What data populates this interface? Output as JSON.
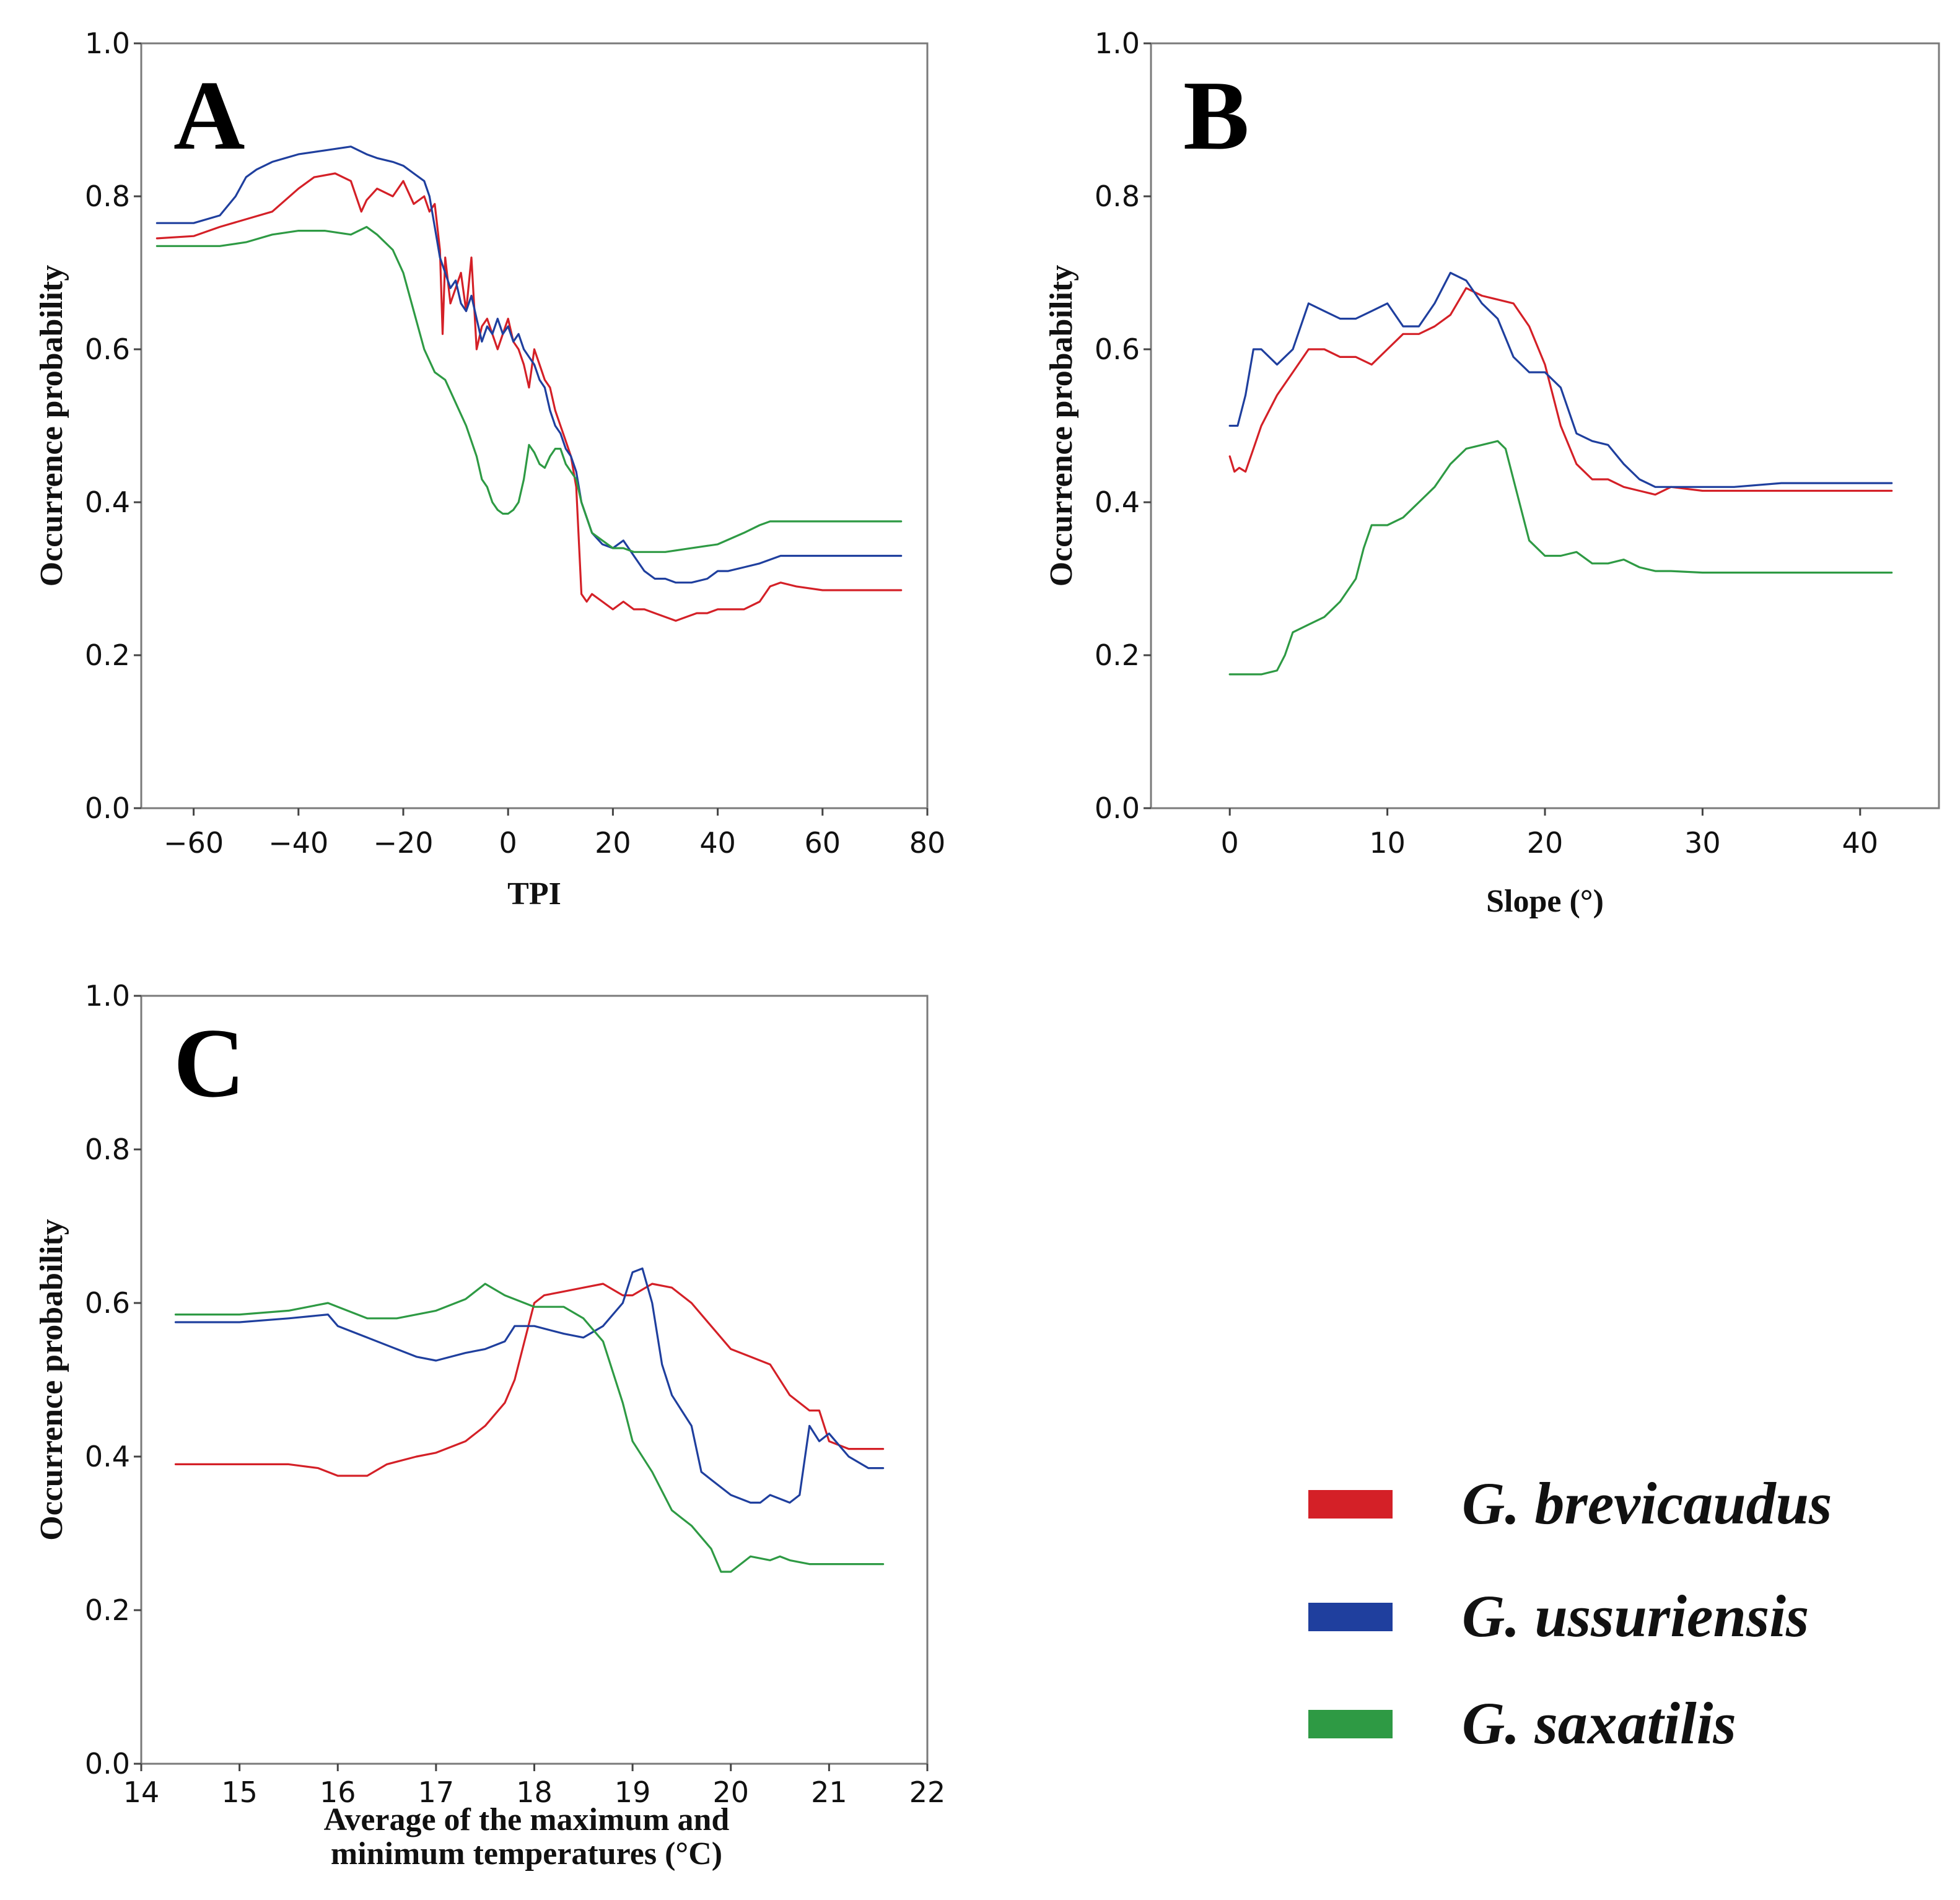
{
  "series_names": [
    "G. brevicaudus",
    "G. ussuriensis",
    "G. saxatilis"
  ],
  "colors": {
    "G. brevicaudus": "#d42027",
    "G. ussuriensis": "#1f3f9e",
    "G. saxatilis": "#2e9a44"
  },
  "legend": {
    "placement": "bottom-right"
  },
  "chart_data": [
    {
      "panel": "A",
      "type": "line",
      "xlabel": "TPI",
      "ylabel": "Occurrence probability",
      "xlim": [
        -70,
        80
      ],
      "ylim": [
        0,
        1
      ],
      "xticks": [
        -60,
        -40,
        -20,
        0,
        20,
        40,
        60,
        80
      ],
      "xtick_labels": [
        "−60",
        "−40",
        "−20",
        "0",
        "20",
        "40",
        "60",
        "80"
      ],
      "yticks": [
        0,
        0.2,
        0.4,
        0.6,
        0.8,
        1.0
      ],
      "ytick_labels": [
        "0.0",
        "0.2",
        "0.4",
        "0.6",
        "0.8",
        "1.0"
      ],
      "grid": false,
      "series": [
        {
          "name": "G. brevicaudus",
          "x": [
            -67,
            -60,
            -55,
            -50,
            -45,
            -40,
            -37,
            -33,
            -30,
            -28,
            -27,
            -25,
            -22,
            -20,
            -18,
            -16,
            -15,
            -14,
            -13,
            -12.5,
            -12,
            -11,
            -10,
            -9,
            -8,
            -7,
            -6,
            -5,
            -4,
            -3,
            -2,
            -1,
            0,
            1,
            2,
            3,
            4,
            5,
            6,
            7,
            8,
            9,
            10,
            11,
            12,
            13,
            14,
            15,
            16,
            18,
            20,
            22,
            24,
            26,
            28,
            30,
            32,
            34,
            36,
            38,
            40,
            42,
            45,
            48,
            50,
            52,
            55,
            60,
            65,
            70,
            75
          ],
          "y": [
            0.745,
            0.748,
            0.76,
            0.77,
            0.78,
            0.81,
            0.825,
            0.83,
            0.82,
            0.78,
            0.795,
            0.81,
            0.8,
            0.82,
            0.79,
            0.8,
            0.78,
            0.79,
            0.73,
            0.62,
            0.72,
            0.66,
            0.68,
            0.7,
            0.65,
            0.72,
            0.6,
            0.63,
            0.64,
            0.62,
            0.6,
            0.62,
            0.64,
            0.61,
            0.6,
            0.58,
            0.55,
            0.6,
            0.58,
            0.56,
            0.55,
            0.52,
            0.5,
            0.48,
            0.46,
            0.42,
            0.28,
            0.27,
            0.28,
            0.27,
            0.26,
            0.27,
            0.26,
            0.26,
            0.255,
            0.25,
            0.245,
            0.25,
            0.255,
            0.255,
            0.26,
            0.26,
            0.26,
            0.27,
            0.29,
            0.295,
            0.29,
            0.285,
            0.285,
            0.285,
            0.285
          ]
        },
        {
          "name": "G. ussuriensis",
          "x": [
            -67,
            -60,
            -55,
            -52,
            -50,
            -48,
            -45,
            -40,
            -35,
            -30,
            -27,
            -25,
            -22,
            -20,
            -18,
            -16,
            -15,
            -14,
            -13,
            -12,
            -11,
            -10,
            -9,
            -8,
            -7,
            -6,
            -5,
            -4,
            -3,
            -2,
            -1,
            0,
            1,
            2,
            3,
            4,
            5,
            6,
            7,
            8,
            9,
            10,
            11,
            12,
            13,
            14,
            15,
            16,
            18,
            20,
            22,
            24,
            26,
            28,
            30,
            32,
            35,
            38,
            40,
            42,
            45,
            48,
            50,
            52,
            55,
            60,
            65,
            70,
            75
          ],
          "y": [
            0.765,
            0.765,
            0.775,
            0.8,
            0.825,
            0.835,
            0.845,
            0.855,
            0.86,
            0.865,
            0.855,
            0.85,
            0.845,
            0.84,
            0.83,
            0.82,
            0.8,
            0.76,
            0.72,
            0.7,
            0.68,
            0.69,
            0.66,
            0.65,
            0.67,
            0.64,
            0.61,
            0.63,
            0.62,
            0.64,
            0.62,
            0.63,
            0.61,
            0.62,
            0.6,
            0.59,
            0.58,
            0.56,
            0.55,
            0.52,
            0.5,
            0.49,
            0.47,
            0.46,
            0.44,
            0.4,
            0.38,
            0.36,
            0.345,
            0.34,
            0.35,
            0.33,
            0.31,
            0.3,
            0.3,
            0.295,
            0.295,
            0.3,
            0.31,
            0.31,
            0.315,
            0.32,
            0.325,
            0.33,
            0.33,
            0.33,
            0.33,
            0.33,
            0.33
          ]
        },
        {
          "name": "G. saxatilis",
          "x": [
            -67,
            -60,
            -55,
            -50,
            -45,
            -40,
            -35,
            -30,
            -27,
            -25,
            -22,
            -20,
            -18,
            -16,
            -14,
            -12,
            -10,
            -8,
            -6,
            -5,
            -4,
            -3,
            -2,
            -1,
            0,
            1,
            2,
            3,
            4,
            5,
            6,
            7,
            8,
            9,
            10,
            11,
            12,
            13,
            14,
            15,
            16,
            18,
            20,
            22,
            24,
            26,
            30,
            35,
            40,
            45,
            48,
            50,
            55,
            60,
            65,
            70,
            75
          ],
          "y": [
            0.735,
            0.735,
            0.735,
            0.74,
            0.75,
            0.755,
            0.755,
            0.75,
            0.76,
            0.75,
            0.73,
            0.7,
            0.65,
            0.6,
            0.57,
            0.56,
            0.53,
            0.5,
            0.46,
            0.43,
            0.42,
            0.4,
            0.39,
            0.385,
            0.385,
            0.39,
            0.4,
            0.43,
            0.475,
            0.465,
            0.45,
            0.445,
            0.46,
            0.47,
            0.47,
            0.45,
            0.44,
            0.43,
            0.4,
            0.38,
            0.36,
            0.35,
            0.34,
            0.34,
            0.335,
            0.335,
            0.335,
            0.34,
            0.345,
            0.36,
            0.37,
            0.375,
            0.375,
            0.375,
            0.375,
            0.375,
            0.375
          ]
        }
      ]
    },
    {
      "panel": "B",
      "type": "line",
      "xlabel": "Slope (°)",
      "ylabel": "Occurrence probability",
      "xlim": [
        -5,
        45
      ],
      "ylim": [
        0,
        1
      ],
      "xticks": [
        0,
        10,
        20,
        30,
        40
      ],
      "xtick_labels": [
        "0",
        "10",
        "20",
        "30",
        "40"
      ],
      "yticks": [
        0,
        0.2,
        0.4,
        0.6,
        0.8,
        1.0
      ],
      "ytick_labels": [
        "0.0",
        "0.2",
        "0.4",
        "0.6",
        "0.8",
        "1.0"
      ],
      "grid": false,
      "series": [
        {
          "name": "G. brevicaudus",
          "x": [
            0,
            0.3,
            0.6,
            1,
            1.5,
            2,
            3,
            4,
            5,
            6,
            7,
            8,
            9,
            10,
            11,
            12,
            13,
            14,
            15,
            16,
            17,
            18,
            19,
            20,
            21,
            22,
            23,
            24,
            25,
            26,
            27,
            28,
            30,
            32,
            35,
            38,
            40,
            42
          ],
          "y": [
            0.46,
            0.44,
            0.445,
            0.44,
            0.47,
            0.5,
            0.54,
            0.57,
            0.6,
            0.6,
            0.59,
            0.59,
            0.58,
            0.6,
            0.62,
            0.62,
            0.63,
            0.645,
            0.68,
            0.67,
            0.665,
            0.66,
            0.63,
            0.58,
            0.5,
            0.45,
            0.43,
            0.43,
            0.42,
            0.415,
            0.41,
            0.42,
            0.415,
            0.415,
            0.415,
            0.415,
            0.415,
            0.415
          ]
        },
        {
          "name": "G. ussuriensis",
          "x": [
            0,
            0.5,
            1,
            1.5,
            2,
            3,
            4,
            5,
            6,
            7,
            8,
            9,
            10,
            11,
            12,
            13,
            14,
            15,
            16,
            17,
            18,
            19,
            20,
            21,
            22,
            23,
            24,
            25,
            26,
            27,
            28,
            30,
            32,
            35,
            38,
            40,
            42
          ],
          "y": [
            0.5,
            0.5,
            0.54,
            0.6,
            0.6,
            0.58,
            0.6,
            0.66,
            0.65,
            0.64,
            0.64,
            0.65,
            0.66,
            0.63,
            0.63,
            0.66,
            0.7,
            0.69,
            0.66,
            0.64,
            0.59,
            0.57,
            0.57,
            0.55,
            0.49,
            0.48,
            0.475,
            0.45,
            0.43,
            0.42,
            0.42,
            0.42,
            0.42,
            0.425,
            0.425,
            0.425,
            0.425
          ]
        },
        {
          "name": "G. saxatilis",
          "x": [
            0,
            1,
            2,
            3,
            3.5,
            4,
            5,
            6,
            7,
            8,
            8.5,
            9,
            10,
            11,
            12,
            13,
            14,
            15,
            16,
            17,
            17.5,
            18,
            19,
            20,
            21,
            22,
            23,
            24,
            25,
            26,
            27,
            28,
            30,
            32,
            35,
            38,
            40,
            42
          ],
          "y": [
            0.175,
            0.175,
            0.175,
            0.18,
            0.2,
            0.23,
            0.24,
            0.25,
            0.27,
            0.3,
            0.34,
            0.37,
            0.37,
            0.38,
            0.4,
            0.42,
            0.45,
            0.47,
            0.475,
            0.48,
            0.47,
            0.43,
            0.35,
            0.33,
            0.33,
            0.335,
            0.32,
            0.32,
            0.325,
            0.315,
            0.31,
            0.31,
            0.308,
            0.308,
            0.308,
            0.308,
            0.308,
            0.308
          ]
        }
      ]
    },
    {
      "panel": "C",
      "type": "line",
      "xlabel": "Average of the maximum and\nminimum temperatures (°C)",
      "xlabel_lines": [
        "Average of the maximum and",
        "minimum temperatures (°C)"
      ],
      "ylabel": "Occurrence probability",
      "xlim": [
        14,
        22
      ],
      "ylim": [
        0,
        1
      ],
      "xticks": [
        14,
        15,
        16,
        17,
        18,
        19,
        20,
        21,
        22
      ],
      "xtick_labels": [
        "14",
        "15",
        "16",
        "17",
        "18",
        "19",
        "20",
        "21",
        "22"
      ],
      "yticks": [
        0,
        0.2,
        0.4,
        0.6,
        0.8,
        1.0
      ],
      "ytick_labels": [
        "0.0",
        "0.2",
        "0.4",
        "0.6",
        "0.8",
        "1.0"
      ],
      "grid": false,
      "series": [
        {
          "name": "G. brevicaudus",
          "x": [
            14.35,
            15,
            15.5,
            15.8,
            16,
            16.3,
            16.5,
            16.8,
            17,
            17.3,
            17.5,
            17.7,
            17.8,
            17.9,
            18,
            18.1,
            18.3,
            18.5,
            18.7,
            18.9,
            19,
            19.2,
            19.4,
            19.6,
            19.8,
            20,
            20.2,
            20.4,
            20.6,
            20.8,
            20.9,
            21,
            21.2,
            21.4,
            21.55
          ],
          "y": [
            0.39,
            0.39,
            0.39,
            0.385,
            0.375,
            0.375,
            0.39,
            0.4,
            0.405,
            0.42,
            0.44,
            0.47,
            0.5,
            0.55,
            0.6,
            0.61,
            0.615,
            0.62,
            0.625,
            0.61,
            0.61,
            0.625,
            0.62,
            0.6,
            0.57,
            0.54,
            0.53,
            0.52,
            0.48,
            0.46,
            0.46,
            0.42,
            0.41,
            0.41,
            0.41
          ]
        },
        {
          "name": "G. ussuriensis",
          "x": [
            14.35,
            15,
            15.5,
            15.9,
            16,
            16.3,
            16.6,
            16.8,
            17,
            17.3,
            17.5,
            17.7,
            17.8,
            17.9,
            18,
            18.3,
            18.5,
            18.7,
            18.9,
            19,
            19.1,
            19.2,
            19.3,
            19.4,
            19.5,
            19.6,
            19.7,
            19.8,
            20,
            20.2,
            20.3,
            20.4,
            20.6,
            20.7,
            20.8,
            20.9,
            21,
            21.2,
            21.4,
            21.55
          ],
          "y": [
            0.575,
            0.575,
            0.58,
            0.585,
            0.57,
            0.555,
            0.54,
            0.53,
            0.525,
            0.535,
            0.54,
            0.55,
            0.57,
            0.57,
            0.57,
            0.56,
            0.555,
            0.57,
            0.6,
            0.64,
            0.645,
            0.6,
            0.52,
            0.48,
            0.46,
            0.44,
            0.38,
            0.37,
            0.35,
            0.34,
            0.34,
            0.35,
            0.34,
            0.35,
            0.44,
            0.42,
            0.43,
            0.4,
            0.385,
            0.385
          ]
        },
        {
          "name": "G. saxatilis",
          "x": [
            14.35,
            15,
            15.5,
            15.9,
            16,
            16.3,
            16.6,
            17,
            17.3,
            17.5,
            17.7,
            17.9,
            18,
            18.3,
            18.5,
            18.7,
            18.9,
            19,
            19.2,
            19.4,
            19.5,
            19.6,
            19.8,
            19.9,
            20,
            20.2,
            20.4,
            20.5,
            20.6,
            20.8,
            21,
            21.2,
            21.4,
            21.55
          ],
          "y": [
            0.585,
            0.585,
            0.59,
            0.6,
            0.595,
            0.58,
            0.58,
            0.59,
            0.605,
            0.625,
            0.61,
            0.6,
            0.595,
            0.595,
            0.58,
            0.55,
            0.47,
            0.42,
            0.38,
            0.33,
            0.32,
            0.31,
            0.28,
            0.25,
            0.25,
            0.27,
            0.265,
            0.27,
            0.265,
            0.26,
            0.26,
            0.26,
            0.26,
            0.26
          ]
        }
      ]
    }
  ]
}
